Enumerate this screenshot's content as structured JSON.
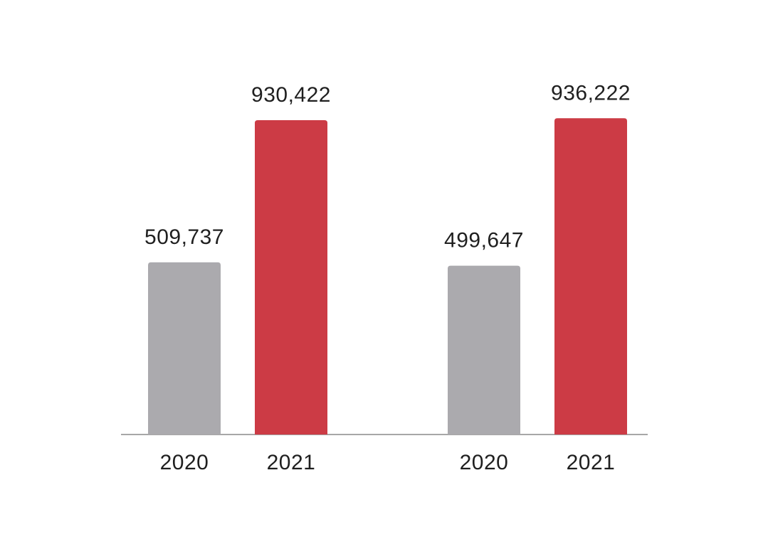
{
  "chart_data": {
    "type": "bar",
    "title": "",
    "xlabel": "",
    "ylabel": "",
    "ylim": [
      0,
      1000000
    ],
    "grid": false,
    "legend": "none",
    "groups": [
      {
        "categories": [
          "2020",
          "2021"
        ],
        "values": [
          509737,
          930422
        ],
        "value_labels": [
          "509,737",
          "930,422"
        ]
      },
      {
        "categories": [
          "2020",
          "2021"
        ],
        "values": [
          499647,
          936222
        ],
        "value_labels": [
          "499,647",
          "936,222"
        ]
      }
    ],
    "colors": {
      "2020": "#abaaae",
      "2021": "#cc3b45",
      "axis": "#8a8a8a",
      "text": "#1f1f1f"
    }
  }
}
